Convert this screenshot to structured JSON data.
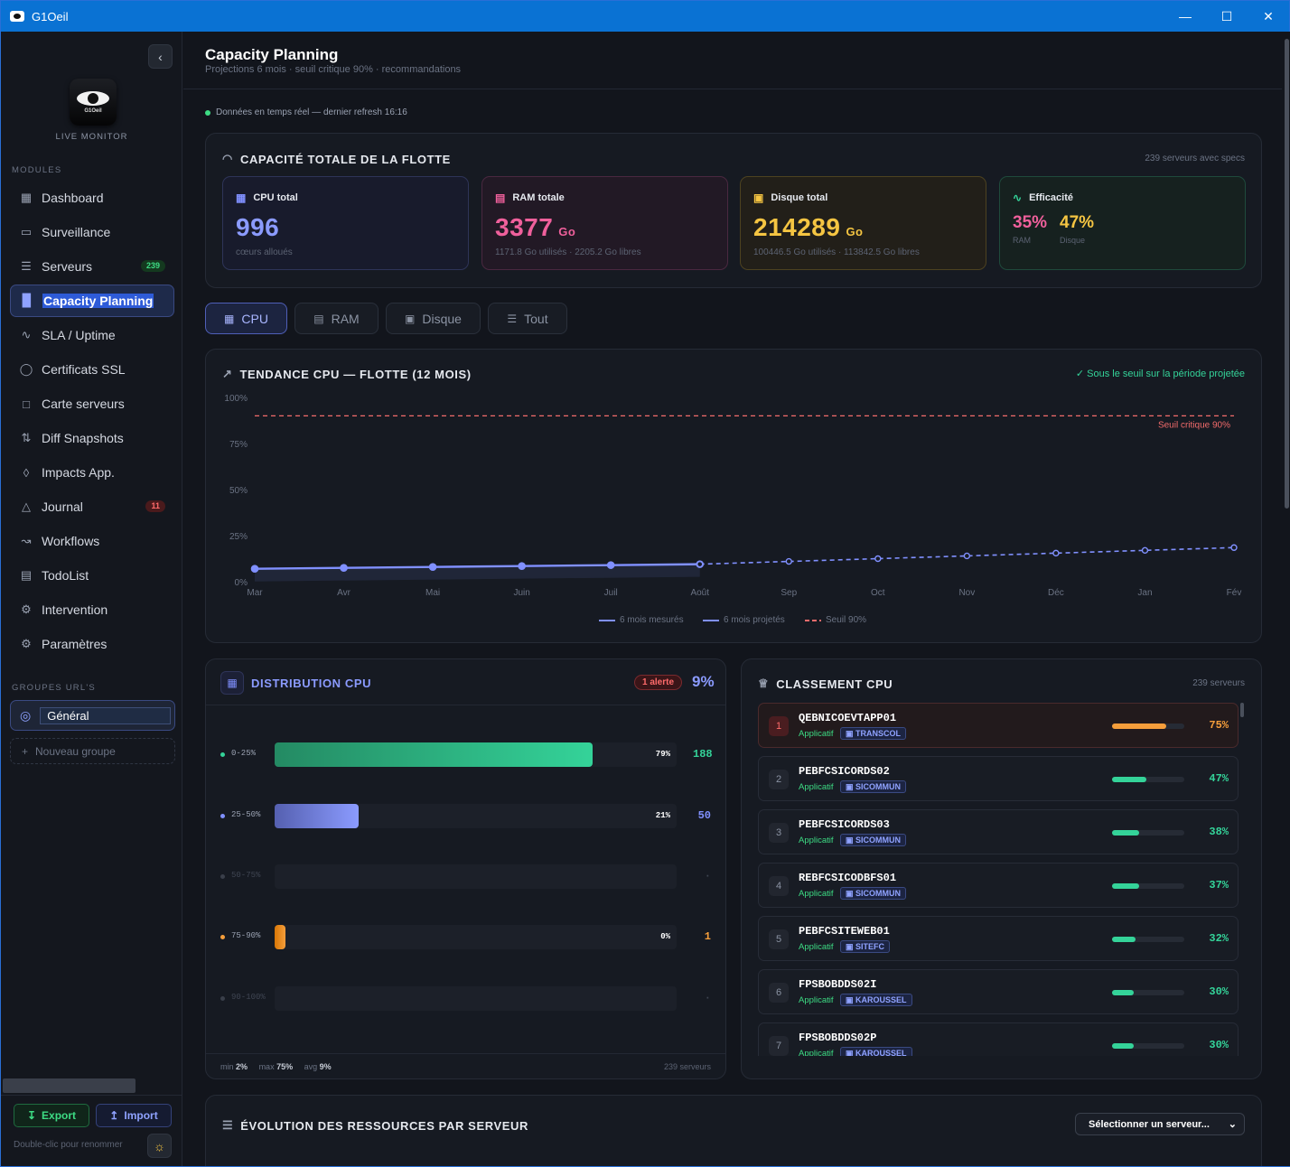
{
  "window": {
    "title": "G1Oeil"
  },
  "sidebar": {
    "live_label": "LIVE MONITOR",
    "modules_label": "MODULES",
    "items": [
      {
        "label": "Dashboard",
        "icon": "grid-icon"
      },
      {
        "label": "Surveillance",
        "icon": "monitor-icon"
      },
      {
        "label": "Serveurs",
        "icon": "server-icon",
        "badge": "239"
      },
      {
        "label": "Capacity Planning",
        "icon": "bar-chart-icon"
      },
      {
        "label": "SLA / Uptime",
        "icon": "pulse-icon"
      },
      {
        "label": "Certificats SSL",
        "icon": "shield-icon"
      },
      {
        "label": "Carte serveurs",
        "icon": "map-icon"
      },
      {
        "label": "Diff Snapshots",
        "icon": "diff-icon"
      },
      {
        "label": "Impacts App.",
        "icon": "network-icon"
      },
      {
        "label": "Journal",
        "icon": "warning-icon",
        "badge": "11"
      },
      {
        "label": "Workflows",
        "icon": "workflow-icon"
      },
      {
        "label": "TodoList",
        "icon": "clipboard-icon"
      },
      {
        "label": "Intervention",
        "icon": "wrench-icon"
      },
      {
        "label": "Paramètres",
        "icon": "gear-icon"
      }
    ],
    "active_index": 3,
    "groups_label": "GROUPES URL'S",
    "group_name": "Général",
    "new_group": "Nouveau groupe",
    "export_label": "Export",
    "import_label": "Import",
    "rename_hint": "Double-clic pour renommer"
  },
  "header": {
    "title": "Capacity Planning",
    "subtitle": "Projections 6 mois · seuil critique 90% · recommandations",
    "live_text": "Données en temps réel — dernier refresh 16:16"
  },
  "fleet": {
    "title": "CAPACITÉ TOTALE DE LA FLOTTE",
    "meta": "239 serveurs avec specs",
    "cpu": {
      "label": "CPU total",
      "value": "996",
      "sub": "cœurs alloués"
    },
    "ram": {
      "label": "RAM totale",
      "value": "3377",
      "unit": "Go",
      "sub": "1171.8 Go utilisés · 2205.2 Go libres"
    },
    "disk": {
      "label": "Disque total",
      "value": "214289",
      "unit": "Go",
      "sub": "100446.5 Go utilisés · 113842.5 Go libres"
    },
    "eff": {
      "label": "Efficacité",
      "ram_value": "35%",
      "ram_label": "RAM",
      "disk_value": "47%",
      "disk_label": "Disque"
    }
  },
  "tabs": [
    {
      "label": "CPU",
      "icon": "cpu-icon"
    },
    {
      "label": "RAM",
      "icon": "memory-icon"
    },
    {
      "label": "Disque",
      "icon": "disk-icon"
    },
    {
      "label": "Tout",
      "icon": "layers-icon"
    }
  ],
  "trend": {
    "title": "TENDANCE CPU — FLOTTE (12 MOIS)",
    "status": "✓ Sous le seuil sur la période projetée",
    "threshold_label": "Seuil critique 90%",
    "legend_measured": "6 mois mesurés",
    "legend_projected": "6 mois projetés",
    "legend_threshold": "Seuil 90%"
  },
  "chart_data": {
    "type": "line",
    "x": [
      "Mar",
      "Avr",
      "Mai",
      "Juin",
      "Juil",
      "Août",
      "Sep",
      "Oct",
      "Nov",
      "Déc",
      "Jan",
      "Fév"
    ],
    "y_ticks": [
      "0%",
      "25%",
      "50%",
      "75%",
      "100%"
    ],
    "ylim": [
      0,
      100
    ],
    "threshold": 90,
    "series": [
      {
        "name": "6 mois mesurés",
        "values": [
          7,
          7.5,
          8,
          8.5,
          9,
          9.5,
          null,
          null,
          null,
          null,
          null,
          null
        ],
        "color": "#8090ff"
      },
      {
        "name": "6 mois projetés",
        "values": [
          null,
          null,
          null,
          null,
          null,
          9.5,
          11,
          12.5,
          14,
          15.5,
          17,
          18.5
        ],
        "color": "#8090ff"
      }
    ]
  },
  "distribution": {
    "title": "DISTRIBUTION CPU",
    "alert": "1 alerte",
    "avg_big": "9%",
    "rows": [
      {
        "range": "0-25%",
        "pct_value": 79,
        "pct": "79%",
        "count": "188",
        "color": "#34d399",
        "dot": "#34d399"
      },
      {
        "range": "25-50%",
        "pct_value": 21,
        "pct": "21%",
        "count": "50",
        "color": "#8090ff",
        "dot": "#8090ff"
      },
      {
        "range": "50-75%",
        "pct_value": 0,
        "pct": "",
        "count": "·",
        "color": "#3a3f4a",
        "dot": "#3a3f4a"
      },
      {
        "range": "75-90%",
        "pct_value": 0.4,
        "pct": "0%",
        "count": "1",
        "color": "#f59e3b",
        "dot": "#f59e3b"
      },
      {
        "range": "90-100%",
        "pct_value": 0,
        "pct": "",
        "count": "·",
        "color": "#3a3f4a",
        "dot": "#3a3f4a"
      }
    ],
    "footer": {
      "min_label": "min",
      "min": "2%",
      "max_label": "max",
      "max": "75%",
      "avg_label": "avg",
      "avg": "9%",
      "servers": "239 serveurs"
    }
  },
  "ranking": {
    "title": "CLASSEMENT CPU",
    "meta": "239 serveurs",
    "items": [
      {
        "rank": "1",
        "name": "QEBNICOEVTAPP01",
        "role": "Applicatif",
        "tag": "TRANSCOL",
        "value": "75%",
        "pct": 75,
        "color": "#f59e3b"
      },
      {
        "rank": "2",
        "name": "PEBFCSICORDS02",
        "role": "Applicatif",
        "tag": "SICOMMUN",
        "value": "47%",
        "pct": 47,
        "color": "#34d399"
      },
      {
        "rank": "3",
        "name": "PEBFCSICORDS03",
        "role": "Applicatif",
        "tag": "SICOMMUN",
        "value": "38%",
        "pct": 38,
        "color": "#34d399"
      },
      {
        "rank": "4",
        "name": "REBFCSICODBFS01",
        "role": "Applicatif",
        "tag": "SICOMMUN",
        "value": "37%",
        "pct": 37,
        "color": "#34d399"
      },
      {
        "rank": "5",
        "name": "PEBFCSITEWEB01",
        "role": "Applicatif",
        "tag": "SITEFC",
        "value": "32%",
        "pct": 32,
        "color": "#34d399"
      },
      {
        "rank": "6",
        "name": "FPSBOBDDS02I",
        "role": "Applicatif",
        "tag": "KAROUSSEL",
        "value": "30%",
        "pct": 30,
        "color": "#34d399"
      },
      {
        "rank": "7",
        "name": "FPSBOBDDS02P",
        "role": "Applicatif",
        "tag": "KAROUSSEL",
        "value": "30%",
        "pct": 30,
        "color": "#34d399"
      }
    ]
  },
  "evolution": {
    "title": "ÉVOLUTION DES RESSOURCES PAR SERVEUR",
    "select": "Sélectionner un serveur..."
  }
}
